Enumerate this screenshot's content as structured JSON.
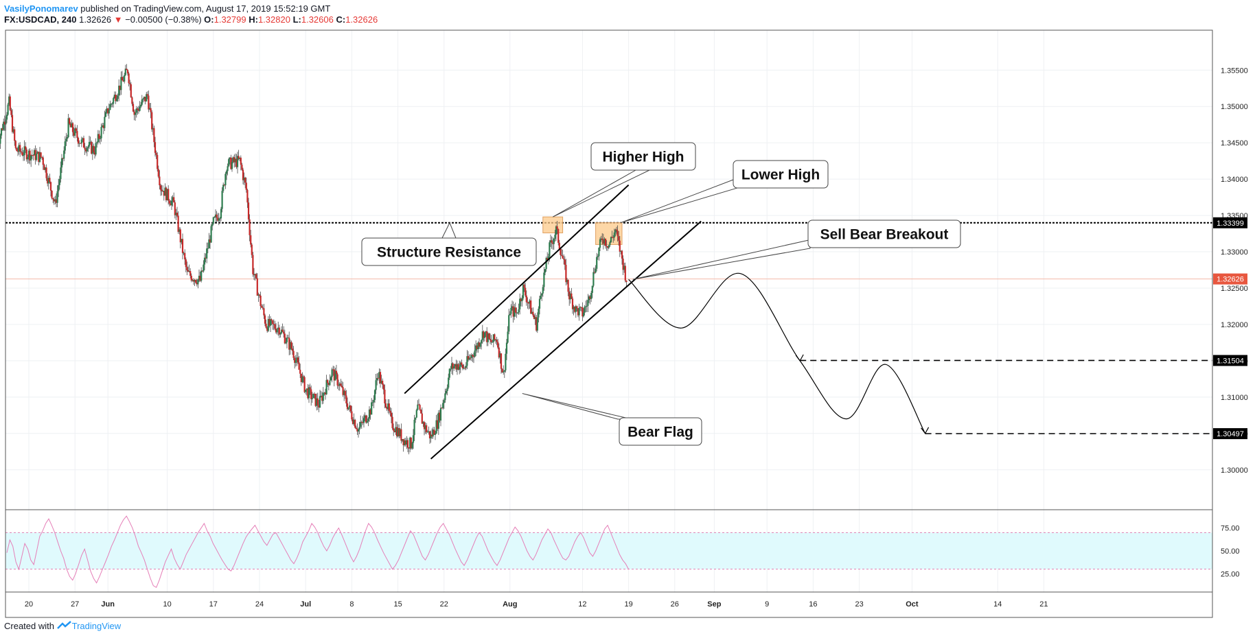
{
  "header": {
    "author": "VasilyPonomarev",
    "published_text": "published on TradingView.com, August 17, 2019 15:52:19 GMT",
    "symbol": "FX:USDCAD, 240",
    "last_price": "1.32626",
    "change_arrow": "▼",
    "change": "−0.00500 (−0.38%)",
    "open_label": "O:",
    "open": "1.32799",
    "high_label": "H:",
    "high": "1.32820",
    "low_label": "L:",
    "low": "1.32606",
    "close_label": "C:",
    "close": "1.32626"
  },
  "footer": {
    "created_with": "Created with",
    "brand": "TradingView"
  },
  "colors": {
    "up": "#2e7d4f",
    "down": "#c62828",
    "wick": "#4a4a4a",
    "rsi_line": "#e57fb8",
    "rsi_band": "#e0fafd",
    "rsi_bound": "#e07fb0",
    "annotation_box": "#fcc98a",
    "price_badge": "#e8573f",
    "level_badge": "#000000"
  },
  "chart_data": [
    {
      "type": "candlestick",
      "symbol": "USDCAD",
      "timeframe": "240",
      "y_range": [
        1.2945,
        1.3605
      ],
      "y_ticks": [
        1.3,
        1.305,
        1.31,
        1.315,
        1.32,
        1.325,
        1.33,
        1.335,
        1.34,
        1.345,
        1.35,
        1.355
      ],
      "y_tick_labels": [
        "1.30000",
        "1.30500",
        "1.31000",
        "1.31500",
        "1.32000",
        "1.32500",
        "1.33000",
        "1.33500",
        "1.34000",
        "1.34500",
        "1.35000",
        "1.35500"
      ],
      "x_tick_labels": [
        {
          "label": "20",
          "date": "2019-05-20"
        },
        {
          "label": "27",
          "date": "2019-05-27"
        },
        {
          "label": "Jun",
          "date": "2019-06-01",
          "bold": true
        },
        {
          "label": "10",
          "date": "2019-06-10"
        },
        {
          "label": "17",
          "date": "2019-06-17"
        },
        {
          "label": "24",
          "date": "2019-06-24"
        },
        {
          "label": "Jul",
          "date": "2019-07-01",
          "bold": true
        },
        {
          "label": "8",
          "date": "2019-07-08"
        },
        {
          "label": "15",
          "date": "2019-07-15"
        },
        {
          "label": "22",
          "date": "2019-07-22"
        },
        {
          "label": "Aug",
          "date": "2019-08-01",
          "bold": true
        },
        {
          "label": "12",
          "date": "2019-08-12"
        },
        {
          "label": "19",
          "date": "2019-08-19"
        },
        {
          "label": "26",
          "date": "2019-08-26"
        },
        {
          "label": "Sep",
          "date": "2019-09-01",
          "bold": true
        },
        {
          "label": "9",
          "date": "2019-09-09"
        },
        {
          "label": "16",
          "date": "2019-09-16"
        },
        {
          "label": "23",
          "date": "2019-09-23"
        },
        {
          "label": "Oct",
          "date": "2019-10-01",
          "bold": true
        },
        {
          "label": "14",
          "date": "2019-10-14"
        },
        {
          "label": "21",
          "date": "2019-10-21"
        }
      ],
      "price_path": [
        {
          "date": "2019-05-15",
          "price": 1.344
        },
        {
          "date": "2019-05-17",
          "price": 1.3505
        },
        {
          "date": "2019-05-18",
          "price": 1.344
        },
        {
          "date": "2019-05-22",
          "price": 1.343
        },
        {
          "date": "2019-05-24",
          "price": 1.3365
        },
        {
          "date": "2019-05-26",
          "price": 1.3475
        },
        {
          "date": "2019-05-28",
          "price": 1.345
        },
        {
          "date": "2019-05-30",
          "price": 1.344
        },
        {
          "date": "2019-06-01",
          "price": 1.3495
        },
        {
          "date": "2019-06-04",
          "price": 1.355
        },
        {
          "date": "2019-06-05",
          "price": 1.349
        },
        {
          "date": "2019-06-07",
          "price": 1.3515
        },
        {
          "date": "2019-06-09",
          "price": 1.339
        },
        {
          "date": "2019-06-11",
          "price": 1.3365
        },
        {
          "date": "2019-06-13",
          "price": 1.327
        },
        {
          "date": "2019-06-15",
          "price": 1.326
        },
        {
          "date": "2019-06-17",
          "price": 1.334
        },
        {
          "date": "2019-06-18",
          "price": 1.3355
        },
        {
          "date": "2019-06-19",
          "price": 1.342
        },
        {
          "date": "2019-06-21",
          "price": 1.3425
        },
        {
          "date": "2019-06-22",
          "price": 1.3385
        },
        {
          "date": "2019-06-23",
          "price": 1.3275
        },
        {
          "date": "2019-06-24",
          "price": 1.3235
        },
        {
          "date": "2019-06-25",
          "price": 1.32
        },
        {
          "date": "2019-06-27",
          "price": 1.3195
        },
        {
          "date": "2019-06-29",
          "price": 1.3165
        },
        {
          "date": "2019-07-01",
          "price": 1.311
        },
        {
          "date": "2019-07-03",
          "price": 1.309
        },
        {
          "date": "2019-07-05",
          "price": 1.3135
        },
        {
          "date": "2019-07-06",
          "price": 1.312
        },
        {
          "date": "2019-07-08",
          "price": 1.3075
        },
        {
          "date": "2019-07-09",
          "price": 1.3055
        },
        {
          "date": "2019-07-11",
          "price": 1.3085
        },
        {
          "date": "2019-07-12",
          "price": 1.3135
        },
        {
          "date": "2019-07-14",
          "price": 1.3065
        },
        {
          "date": "2019-07-16",
          "price": 1.304
        },
        {
          "date": "2019-07-17",
          "price": 1.3035
        },
        {
          "date": "2019-07-18",
          "price": 1.3085
        },
        {
          "date": "2019-07-19",
          "price": 1.306
        },
        {
          "date": "2019-07-20",
          "price": 1.3045
        },
        {
          "date": "2019-07-21",
          "price": 1.3065
        },
        {
          "date": "2019-07-22",
          "price": 1.31
        },
        {
          "date": "2019-07-23",
          "price": 1.314
        },
        {
          "date": "2019-07-24",
          "price": 1.3145
        },
        {
          "date": "2019-07-25",
          "price": 1.314
        },
        {
          "date": "2019-07-27",
          "price": 1.317
        },
        {
          "date": "2019-07-28",
          "price": 1.319
        },
        {
          "date": "2019-07-29",
          "price": 1.3175
        },
        {
          "date": "2019-07-30",
          "price": 1.318
        },
        {
          "date": "2019-07-31",
          "price": 1.313
        },
        {
          "date": "2019-08-01",
          "price": 1.322
        },
        {
          "date": "2019-08-02",
          "price": 1.3215
        },
        {
          "date": "2019-08-03",
          "price": 1.325
        },
        {
          "date": "2019-08-04",
          "price": 1.3225
        },
        {
          "date": "2019-08-05",
          "price": 1.32
        },
        {
          "date": "2019-08-06",
          "price": 1.326
        },
        {
          "date": "2019-08-07",
          "price": 1.3305
        },
        {
          "date": "2019-08-08",
          "price": 1.333
        },
        {
          "date": "2019-08-09",
          "price": 1.329
        },
        {
          "date": "2019-08-10",
          "price": 1.324
        },
        {
          "date": "2019-08-11",
          "price": 1.322
        },
        {
          "date": "2019-08-12",
          "price": 1.3215
        },
        {
          "date": "2019-08-13",
          "price": 1.3235
        },
        {
          "date": "2019-08-14",
          "price": 1.3285
        },
        {
          "date": "2019-08-15",
          "price": 1.332
        },
        {
          "date": "2019-08-16",
          "price": 1.331
        },
        {
          "date": "2019-08-17",
          "price": 1.333
        },
        {
          "date": "2019-08-18",
          "price": 1.329
        },
        {
          "date": "2019-08-18T16:00",
          "price": 1.32626
        }
      ],
      "horizontal_levels": [
        {
          "price": 1.33399,
          "label": "1.33399",
          "style": "dotted",
          "meaning": "Structure Resistance"
        },
        {
          "price": 1.32626,
          "label": "1.32626",
          "style": "thin",
          "meaning": "last price"
        },
        {
          "price": 1.31504,
          "label": "1.31504",
          "style": "dashed",
          "from_date": "2019-09-14"
        },
        {
          "price": 1.30497,
          "label": "1.30497",
          "style": "dashed",
          "from_date": "2019-10-03"
        }
      ],
      "channel_lines": [
        {
          "from": {
            "date": "2019-07-16",
            "price": 1.3105
          },
          "to": {
            "date": "2019-08-19",
            "price": 1.3392
          }
        },
        {
          "from": {
            "date": "2019-07-20",
            "price": 1.3015
          },
          "to": {
            "date": "2019-08-30",
            "price": 1.3342
          }
        }
      ],
      "projection_path": [
        {
          "date": "2019-08-19",
          "price": 1.3262
        },
        {
          "date": "2019-08-27",
          "price": 1.3195
        },
        {
          "date": "2019-09-05",
          "price": 1.327
        },
        {
          "date": "2019-09-14",
          "price": 1.315
        },
        {
          "date": "2019-09-21",
          "price": 1.307
        },
        {
          "date": "2019-09-27",
          "price": 1.3145
        },
        {
          "date": "2019-10-03",
          "price": 1.305
        }
      ],
      "highlight_boxes": [
        {
          "label": "Higher High",
          "x_from": "2019-08-06",
          "x_to": "2019-08-09",
          "y_from": 1.3326,
          "y_to": 1.3348
        },
        {
          "label": "Lower High",
          "x_from": "2019-08-14",
          "x_to": "2019-08-18",
          "y_from": 1.331,
          "y_to": 1.334
        }
      ],
      "annotations": [
        {
          "text": "Higher High"
        },
        {
          "text": "Lower High"
        },
        {
          "text": "Structure Resistance"
        },
        {
          "text": "Sell Bear Breakout"
        },
        {
          "text": "Bear Flag"
        }
      ]
    },
    {
      "type": "line",
      "indicator": "RSI",
      "y_range": [
        5,
        95
      ],
      "y_ticks": [
        25,
        50,
        75
      ],
      "y_tick_labels": [
        "25.00",
        "50.00",
        "75.00"
      ],
      "bands": [
        30,
        70
      ],
      "values": [
        48,
        62,
        55,
        38,
        30,
        44,
        58,
        52,
        40,
        35,
        50,
        66,
        72,
        80,
        85,
        78,
        70,
        60,
        50,
        42,
        30,
        22,
        18,
        25,
        35,
        45,
        52,
        40,
        28,
        20,
        15,
        22,
        30,
        38,
        46,
        55,
        62,
        70,
        78,
        84,
        88,
        82,
        75,
        66,
        55,
        48,
        40,
        30,
        20,
        12,
        10,
        18,
        28,
        38,
        45,
        52,
        42,
        35,
        30,
        38,
        46,
        52,
        58,
        64,
        70,
        75,
        80,
        72,
        66,
        58,
        52,
        46,
        40,
        35,
        30,
        28,
        34,
        42,
        50,
        58,
        65,
        70,
        74,
        78,
        72,
        66,
        60,
        56,
        62,
        68,
        70,
        64,
        58,
        52,
        46,
        40,
        36,
        42,
        50,
        60,
        66,
        72,
        80,
        76,
        70,
        62,
        55,
        50,
        56,
        64,
        70,
        75,
        68,
        60,
        52,
        44,
        38,
        44,
        52,
        62,
        72,
        80,
        76,
        70,
        62,
        55,
        48,
        42,
        36,
        30,
        34,
        40,
        48,
        56,
        64,
        72,
        68,
        60,
        52,
        44,
        40,
        46,
        54,
        62,
        70,
        76,
        80,
        74,
        68,
        60,
        52,
        45,
        38,
        34,
        40,
        48,
        56,
        64,
        70,
        66,
        58,
        50,
        44,
        38,
        34,
        40,
        48,
        56,
        64,
        70,
        76,
        72,
        66,
        58,
        50,
        44,
        40,
        46,
        54,
        62,
        68,
        74,
        70,
        62,
        55,
        48,
        42,
        40,
        44,
        52,
        60,
        66,
        70,
        64,
        56,
        48,
        44,
        50,
        58,
        66,
        74,
        78,
        70,
        62,
        54,
        46,
        40,
        36,
        30
      ]
    }
  ]
}
